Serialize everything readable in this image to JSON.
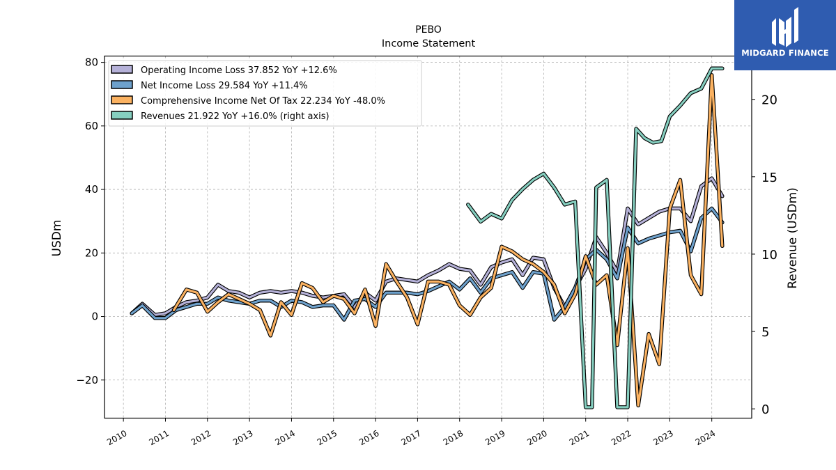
{
  "brand": {
    "name": "MIDGARD FINANCE",
    "color": "#2f5cb0"
  },
  "chart_data": {
    "type": "line",
    "title": "PEBO",
    "subtitle": "Income Statement",
    "ylabel": "USDm",
    "y2label": "Revenue (USDm)",
    "ylim": [
      -32,
      82
    ],
    "y2lim": [
      -0.6,
      22.8
    ],
    "xlim": [
      2009.55,
      2024.95
    ],
    "yticks": [
      -20,
      0,
      20,
      40,
      60,
      80
    ],
    "y2ticks": [
      0,
      5,
      10,
      15,
      20
    ],
    "xticks": [
      "2010",
      "2011",
      "2012",
      "2013",
      "2014",
      "2015",
      "2016",
      "2017",
      "2018",
      "2019",
      "2020",
      "2021",
      "2022",
      "2023",
      "2024"
    ],
    "grid": true,
    "legend_position": "upper-left",
    "series": [
      {
        "name": "Operating Income Loss",
        "legend": "Operating Income Loss  37.852 YoY +12.6%",
        "axis": "left",
        "color": "#b5b1d8",
        "x": [
          2010.2,
          2010.45,
          2010.75,
          2011.0,
          2011.25,
          2011.5,
          2011.75,
          2012.0,
          2012.25,
          2012.5,
          2012.75,
          2013.0,
          2013.25,
          2013.5,
          2013.75,
          2014.0,
          2014.25,
          2014.5,
          2014.75,
          2015.0,
          2015.25,
          2015.5,
          2015.75,
          2016.0,
          2016.25,
          2016.5,
          2016.75,
          2017.0,
          2017.25,
          2017.5,
          2017.75,
          2018.0,
          2018.25,
          2018.5,
          2018.75,
          2019.0,
          2019.25,
          2019.5,
          2019.75,
          2020.0,
          2020.25,
          2020.5,
          2020.75,
          2021.0,
          2021.25,
          2021.5,
          2021.75,
          2022.0,
          2022.25,
          2022.5,
          2022.75,
          2023.0,
          2023.25,
          2023.5,
          2023.75,
          2024.0,
          2024.25
        ],
        "values": [
          1,
          4,
          0.5,
          1,
          3,
          4.5,
          5,
          6,
          10,
          8,
          7.5,
          6,
          7.5,
          8,
          7.5,
          8,
          7.5,
          6.5,
          6,
          6.5,
          7,
          3,
          7.5,
          5,
          11,
          12,
          11.5,
          11,
          13,
          14.5,
          16.5,
          15,
          14.5,
          10,
          15.5,
          17,
          18,
          13,
          18.5,
          18,
          9,
          3,
          9,
          15,
          25,
          20,
          14,
          34,
          29,
          31,
          33,
          34,
          34,
          30,
          41,
          43.5,
          37.9
        ]
      },
      {
        "name": "Net Income Loss",
        "legend": "Net Income Loss  29.584 YoY +11.4%",
        "axis": "left",
        "color": "#6ea1cc",
        "x": [
          2010.2,
          2010.45,
          2010.75,
          2011.0,
          2011.25,
          2011.5,
          2011.75,
          2012.0,
          2012.25,
          2012.5,
          2012.75,
          2013.0,
          2013.25,
          2013.5,
          2013.75,
          2014.0,
          2014.25,
          2014.5,
          2014.75,
          2015.0,
          2015.25,
          2015.5,
          2015.75,
          2016.0,
          2016.25,
          2016.5,
          2016.75,
          2017.0,
          2017.25,
          2017.5,
          2017.75,
          2018.0,
          2018.25,
          2018.5,
          2018.75,
          2019.0,
          2019.25,
          2019.5,
          2019.75,
          2020.0,
          2020.25,
          2020.5,
          2020.75,
          2021.0,
          2021.25,
          2021.5,
          2021.75,
          2022.0,
          2022.25,
          2022.5,
          2022.75,
          2023.0,
          2023.25,
          2023.5,
          2023.75,
          2024.0,
          2024.25
        ],
        "values": [
          1,
          3.5,
          -0.5,
          -0.5,
          2,
          3,
          4,
          4,
          6,
          5,
          4.5,
          4,
          5,
          5,
          3,
          5,
          4.5,
          3,
          3.5,
          3.5,
          -1,
          5,
          5.5,
          3,
          7.5,
          7.5,
          7.5,
          7,
          8,
          9.5,
          11,
          8.5,
          12,
          7.5,
          12,
          13,
          14,
          9,
          14,
          13.5,
          -1,
          3,
          9,
          18,
          21,
          18,
          12,
          28,
          23,
          24.5,
          25.5,
          26.5,
          27,
          20.5,
          31,
          34,
          29.6
        ]
      },
      {
        "name": "Comprehensive Income Net Of Tax",
        "legend": "Comprehensive Income Net Of Tax  22.234 YoY -48.0%",
        "axis": "left",
        "color": "#fbb261",
        "x": [
          2011.2,
          2011.5,
          2011.75,
          2012.0,
          2012.25,
          2012.5,
          2012.75,
          2013.0,
          2013.25,
          2013.5,
          2013.75,
          2014.0,
          2014.25,
          2014.5,
          2014.75,
          2015.0,
          2015.25,
          2015.5,
          2015.75,
          2016.0,
          2016.25,
          2016.5,
          2016.75,
          2017.0,
          2017.25,
          2017.5,
          2017.75,
          2018.0,
          2018.25,
          2018.5,
          2018.75,
          2019.0,
          2019.25,
          2019.5,
          2019.75,
          2020.0,
          2020.25,
          2020.5,
          2020.75,
          2021.0,
          2021.25,
          2021.5,
          2021.75,
          2022.0,
          2022.25,
          2022.5,
          2022.75,
          2023.0,
          2023.25,
          2023.5,
          2023.75,
          2024.0,
          2024.25
        ],
        "values": [
          2,
          8.5,
          7.5,
          1.5,
          4.5,
          7,
          5.5,
          4,
          2,
          -6,
          4.5,
          0.5,
          10.5,
          9,
          4.5,
          6.5,
          5.5,
          1,
          8.5,
          -3,
          16.5,
          11,
          6,
          -2.5,
          11,
          11,
          10,
          3.5,
          0.5,
          6,
          9,
          22,
          20.5,
          18,
          16.5,
          14,
          10,
          1,
          7,
          19,
          10,
          13,
          -9,
          21.5,
          -28,
          -5.5,
          -15,
          34,
          43,
          13,
          7,
          76,
          22.2
        ]
      },
      {
        "name": "Revenues",
        "legend": "Revenues  21.922 YoY +16.0% (right axis)",
        "axis": "right",
        "color": "#86cfc0",
        "x": [
          2018.2,
          2018.5,
          2018.75,
          2019.0,
          2019.25,
          2019.5,
          2019.75,
          2020.0,
          2020.25,
          2020.5,
          2020.75,
          2021.0,
          2021.15,
          2021.25,
          2021.5,
          2021.75,
          2022.0,
          2022.2,
          2022.4,
          2022.6,
          2022.8,
          2023.0,
          2023.25,
          2023.5,
          2023.75,
          2024.0,
          2024.25
        ],
        "values": [
          13.2,
          12.1,
          12.6,
          12.3,
          13.5,
          14.2,
          14.8,
          15.2,
          14.3,
          13.2,
          13.4,
          0.1,
          0.1,
          14.3,
          14.8,
          0.1,
          0.1,
          18.1,
          17.5,
          17.2,
          17.3,
          18.9,
          19.6,
          20.4,
          20.7,
          22.0,
          22.0
        ]
      }
    ]
  }
}
